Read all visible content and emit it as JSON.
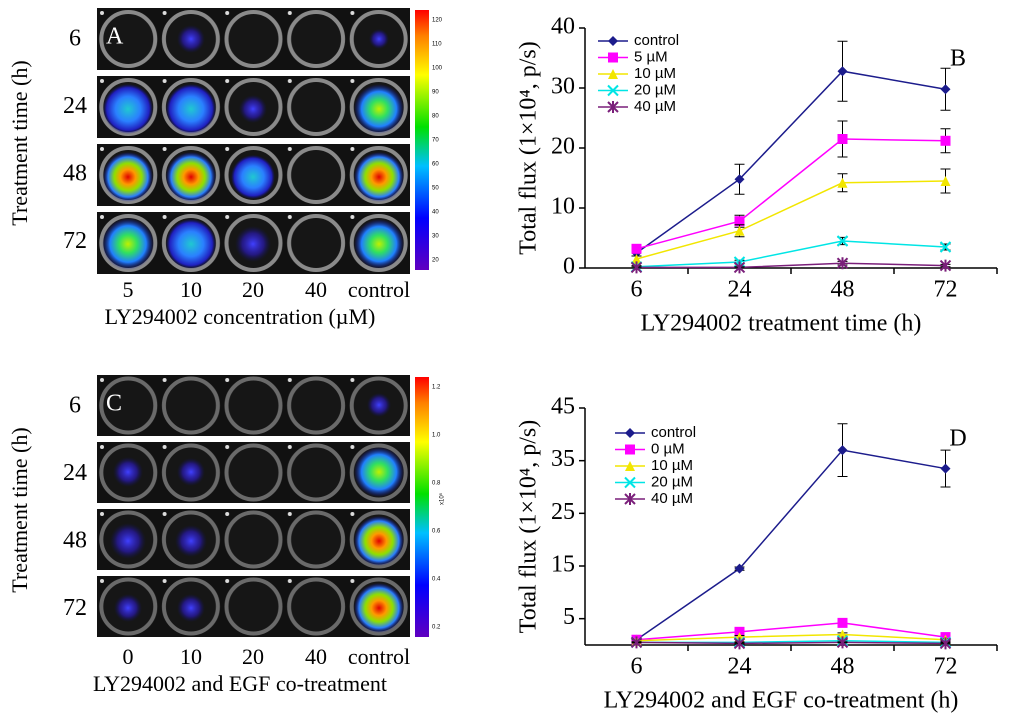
{
  "panels": [
    {
      "letter": "A",
      "row_labels": [
        "6",
        "24",
        "48",
        "72"
      ],
      "y_label": "Treatment time (h)",
      "col_labels": [
        "5",
        "10",
        "20",
        "40",
        "control"
      ],
      "x_label": "LY294002 concentration (µM)",
      "colorbar_labels": [
        "120",
        "110",
        "100",
        "90",
        "80",
        "70",
        "60",
        "50",
        "40",
        "30",
        "20"
      ]
    },
    {
      "letter": "C",
      "row_labels": [
        "6",
        "24",
        "48",
        "72"
      ],
      "y_label": "Treatment time (h)",
      "col_labels": [
        "0",
        "10",
        "20",
        "40",
        "control"
      ],
      "x_label": "LY294002 and EGF co-treatment",
      "colorbar_labels": [
        "1.2",
        "1.0",
        "0.8",
        "0.6",
        "0.4",
        "0.2"
      ],
      "colorbar_unit": "x10⁵"
    }
  ],
  "chart_data": [
    {
      "type": "line",
      "letter": "B",
      "x_label": "LY294002 treatment time (h)",
      "y_label": "Total flux (1×10⁴, p/s)",
      "categories": [
        "6",
        "24",
        "48",
        "72"
      ],
      "ylim": [
        0,
        40
      ],
      "yticks": [
        0,
        10,
        20,
        30,
        40
      ],
      "grid": false,
      "legend": "upper left",
      "series": [
        {
          "name": "control",
          "color": "#1c1c8c",
          "marker": "diamond",
          "values": [
            2.5,
            14.8,
            32.8,
            29.8
          ],
          "errors": [
            0.5,
            2.5,
            5,
            3.5
          ]
        },
        {
          "name": "5 µM",
          "color": "#ff00ff",
          "marker": "square",
          "values": [
            3.2,
            7.8,
            21.5,
            21.2
          ],
          "errors": [
            0.5,
            1,
            3,
            2
          ]
        },
        {
          "name": "10 µM",
          "color": "#f2e600",
          "marker": "triangle",
          "values": [
            1.5,
            6.2,
            14.2,
            14.5
          ],
          "errors": [
            0.5,
            1,
            1.5,
            2
          ]
        },
        {
          "name": "20 µM",
          "color": "#00e5e5",
          "marker": "cross",
          "values": [
            0.2,
            1.0,
            4.5,
            3.5
          ],
          "errors": [
            0.2,
            0.3,
            0.6,
            0.5
          ]
        },
        {
          "name": "40 µM",
          "color": "#7a1f7a",
          "marker": "star",
          "values": [
            0.1,
            0.1,
            0.8,
            0.4
          ],
          "errors": [
            0.1,
            0.1,
            0.3,
            0.2
          ]
        }
      ]
    },
    {
      "type": "line",
      "letter": "D",
      "x_label": "LY294002 and EGF co-treatment (h)",
      "y_label": "Total flux (1×10⁴, p/s)",
      "categories": [
        "6",
        "24",
        "48",
        "72"
      ],
      "ylim": [
        0,
        45
      ],
      "yticks": [
        5,
        15,
        25,
        35,
        45
      ],
      "grid": false,
      "legend": "upper left",
      "series": [
        {
          "name": "control",
          "color": "#1c1c8c",
          "marker": "diamond",
          "values": [
            1,
            14.5,
            37,
            33.5
          ],
          "errors": [
            0.3,
            0.3,
            5,
            3.5
          ]
        },
        {
          "name": "0 µM",
          "color": "#ff00ff",
          "marker": "square",
          "values": [
            1,
            2.5,
            4.2,
            1.5
          ],
          "errors": [
            0.2,
            0.4,
            0.6,
            0.4
          ]
        },
        {
          "name": "10 µM",
          "color": "#f2e600",
          "marker": "triangle",
          "values": [
            0.8,
            1.5,
            2,
            1
          ],
          "errors": [
            0.2,
            0.3,
            0.3,
            0.2
          ]
        },
        {
          "name": "20 µM",
          "color": "#00e5e5",
          "marker": "cross",
          "values": [
            0.5,
            0.5,
            0.8,
            0.5
          ],
          "errors": [
            0.1,
            0.1,
            0.2,
            0.1
          ]
        },
        {
          "name": "40 µM",
          "color": "#7a1f7a",
          "marker": "star",
          "values": [
            0.5,
            0.3,
            0.5,
            0.3
          ],
          "errors": [
            0.1,
            0.1,
            0.1,
            0.1
          ]
        }
      ]
    }
  ]
}
